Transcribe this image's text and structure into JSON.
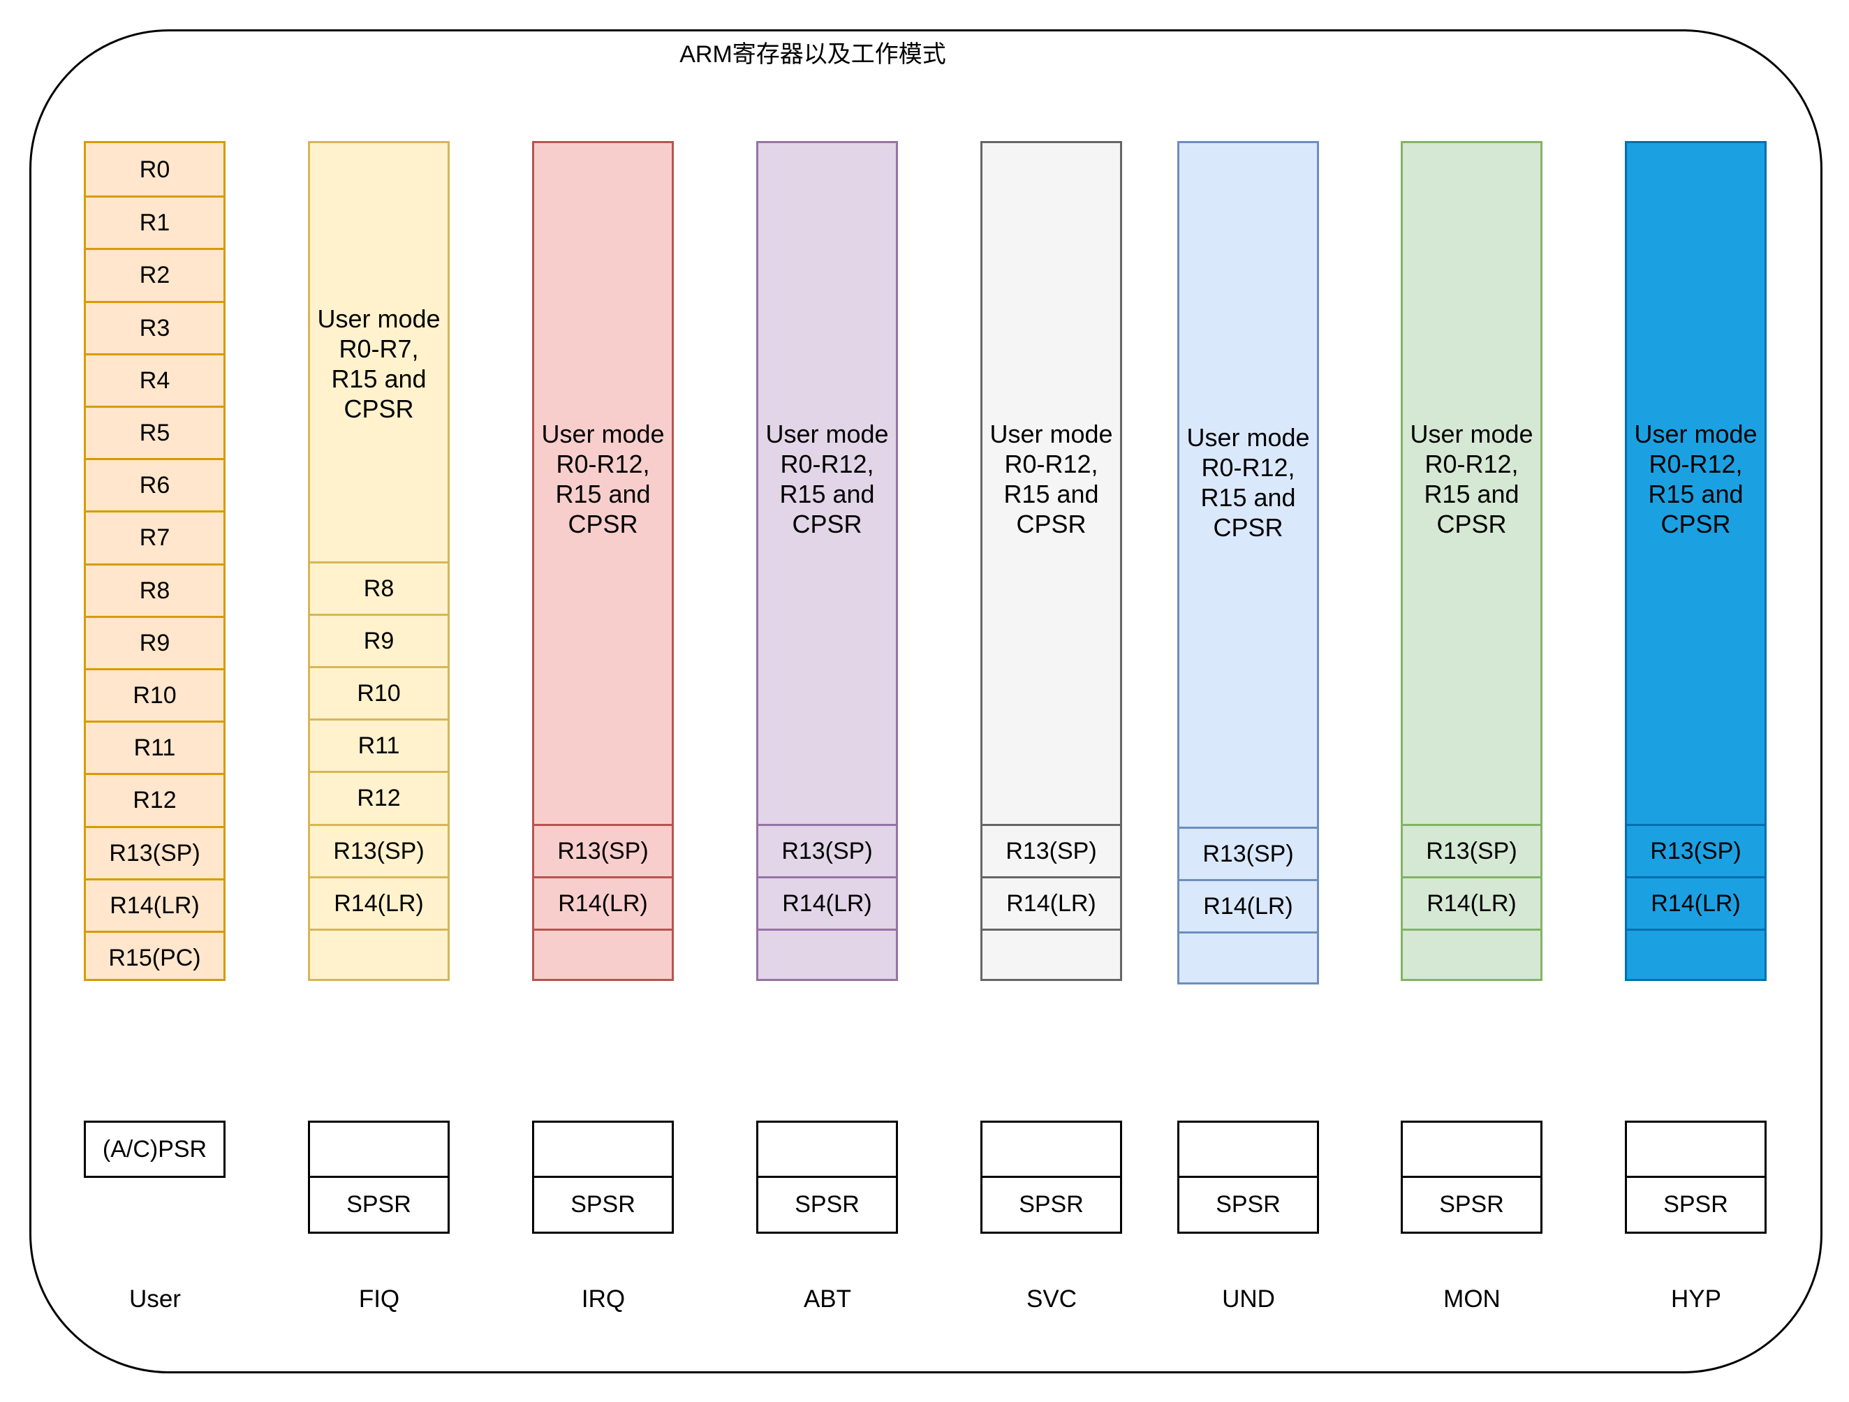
{
  "title": "ARM寄存器以及工作模式",
  "user_registers": [
    "R0",
    "R1",
    "R2",
    "R3",
    "R4",
    "R5",
    "R6",
    "R7",
    "R8",
    "R9",
    "R10",
    "R11",
    "R12",
    "R13(SP)",
    "R14(LR)",
    "R15(PC)"
  ],
  "fiq": {
    "shared_label": "User mode R0-R7, R15 and CPSR",
    "banked": [
      "R8",
      "R9",
      "R10",
      "R11",
      "R12",
      "R13(SP)",
      "R14(LR)",
      ""
    ]
  },
  "modes": [
    {
      "id": "irq",
      "shared_label": "User mode R0-R12, R15 and CPSR",
      "sp": "R13(SP)",
      "lr": "R14(LR)",
      "fill": "#f8cecc",
      "stroke": "#b85450",
      "text_color": "#000000"
    },
    {
      "id": "abt",
      "shared_label": "User mode R0-R12, R15 and CPSR",
      "sp": "R13(SP)",
      "lr": "R14(LR)",
      "fill": "#e1d5e7",
      "stroke": "#9673a6",
      "text_color": "#000000"
    },
    {
      "id": "svc",
      "shared_label": "User mode R0-R12, R15 and CPSR",
      "sp": "R13(SP)",
      "lr": "R14(LR)",
      "fill": "#f5f5f5",
      "stroke": "#666666",
      "text_color": "#000000"
    },
    {
      "id": "und",
      "shared_label": "User mode R0-R12, R15 and CPSR",
      "sp": "R13(SP)",
      "lr": "R14(LR)",
      "fill": "#dae8fc",
      "stroke": "#6c8ebf",
      "text_color": "#000000"
    },
    {
      "id": "mon",
      "shared_label": "User mode R0-R12, R15 and CPSR",
      "sp": "R13(SP)",
      "lr": "R14(LR)",
      "fill": "#d5e8d4",
      "stroke": "#82b366",
      "text_color": "#000000"
    },
    {
      "id": "hyp",
      "shared_label": "User mode R0-R12, R15 and CPSR",
      "sp": "R13(SP)",
      "lr": "R14(LR)",
      "fill": "#1ba1e2",
      "stroke": "#006eaf",
      "text_color": "#000000"
    }
  ],
  "colors": {
    "user_fill": "#ffe6cc",
    "user_stroke": "#d79b00",
    "fiq_fill": "#fff2cc",
    "fiq_stroke": "#d6b656"
  },
  "user_psr": "(A/C)PSR",
  "spsr": "SPSR",
  "mode_labels": [
    "User",
    "FIQ",
    "IRQ",
    "ABT",
    "SVC",
    "UND",
    "MON",
    "HYP"
  ]
}
